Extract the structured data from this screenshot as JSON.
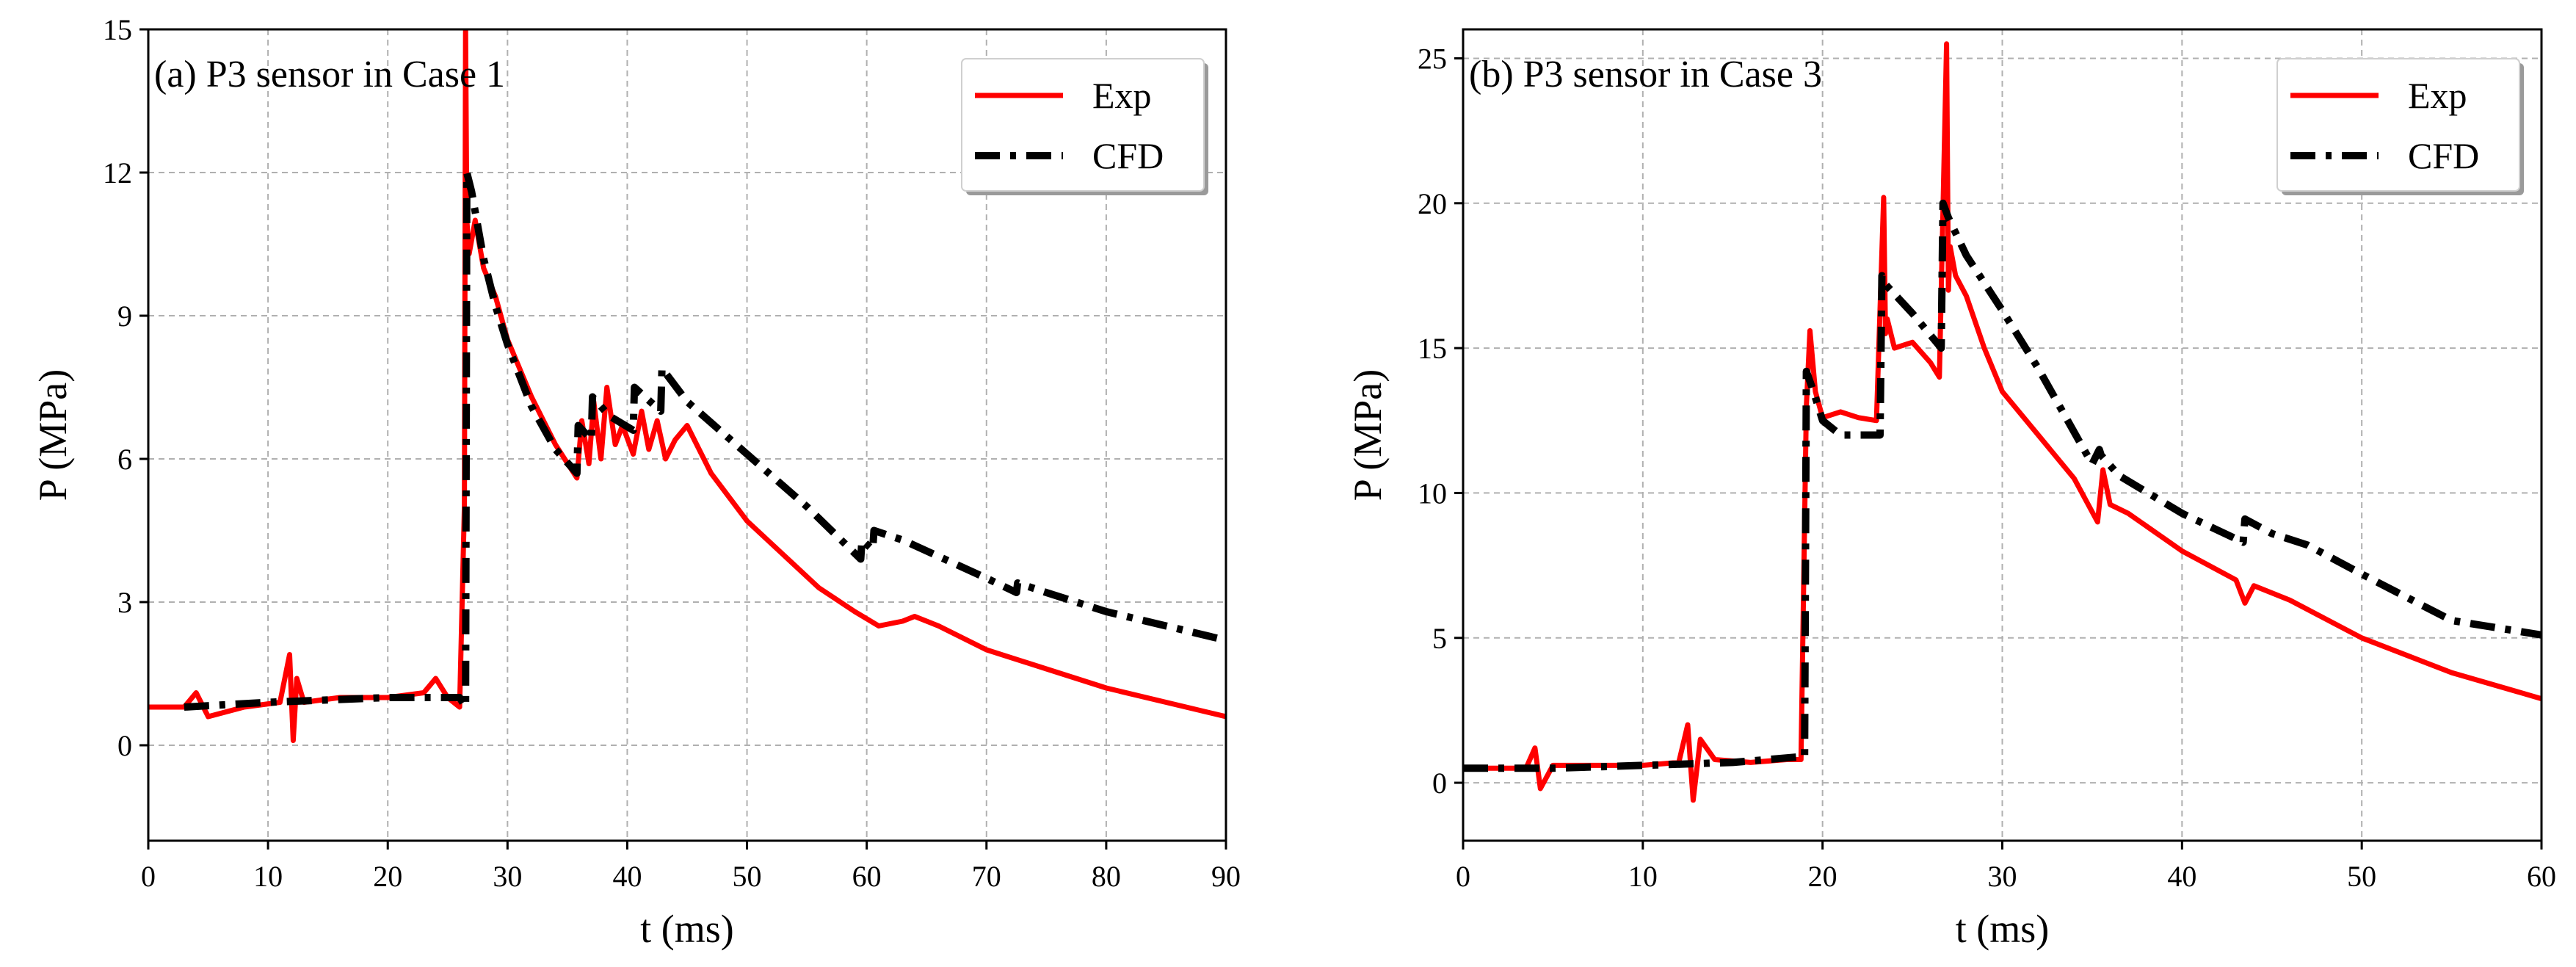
{
  "chart_data": [
    {
      "type": "line",
      "title": "(a) P3 sensor in Case 1",
      "xlabel": "t (ms)",
      "ylabel": "P (MPa)",
      "xlim": [
        0,
        90
      ],
      "ylim": [
        -2,
        15
      ],
      "xticks": [
        0,
        10,
        20,
        30,
        40,
        50,
        60,
        70,
        80,
        90
      ],
      "yticks": [
        0,
        3,
        6,
        9,
        12,
        15
      ],
      "grid": true,
      "legend_position": "top-right",
      "series": [
        {
          "name": "Exp",
          "color": "#ff0000",
          "style": "solid",
          "x": [
            0,
            3,
            4,
            5,
            8,
            11,
            11.8,
            12.1,
            12.4,
            13,
            16,
            20,
            23,
            24,
            25,
            26,
            26.4,
            26.5,
            26.6,
            26.8,
            27.3,
            28,
            29,
            30,
            32,
            34,
            35.8,
            36.2,
            36.8,
            37.2,
            37.8,
            38.3,
            39,
            39.6,
            40.5,
            41.2,
            41.8,
            42.5,
            43.2,
            44,
            45,
            47,
            50,
            53,
            56,
            59,
            61,
            63,
            64,
            66,
            70,
            75,
            80,
            85,
            90
          ],
          "y": [
            0.8,
            0.8,
            1.1,
            0.6,
            0.8,
            0.9,
            1.9,
            0.1,
            1.4,
            0.9,
            1.0,
            1.0,
            1.1,
            1.4,
            1.0,
            0.8,
            5,
            15,
            11,
            10.3,
            11.0,
            10.0,
            9.4,
            8.5,
            7.3,
            6.3,
            5.6,
            6.8,
            5.9,
            7.2,
            6.0,
            7.5,
            6.3,
            6.7,
            6.1,
            7.0,
            6.2,
            6.8,
            6.0,
            6.4,
            6.7,
            5.7,
            4.7,
            4.0,
            3.3,
            2.8,
            2.5,
            2.6,
            2.7,
            2.5,
            2.0,
            1.6,
            1.2,
            0.9,
            0.6
          ]
        },
        {
          "name": "CFD",
          "color": "#000000",
          "style": "dashdot",
          "x": [
            3,
            10,
            20,
            26,
            26.5,
            26.6,
            27,
            28,
            29,
            30,
            32,
            34,
            35.8,
            35.9,
            37,
            37.1,
            38.5,
            40.5,
            40.6,
            42.8,
            42.9,
            45,
            50,
            55,
            59.5,
            59.6,
            60.5,
            60.6,
            63,
            70,
            72.5,
            72.6,
            75,
            80,
            85,
            90
          ],
          "y": [
            0.8,
            0.9,
            1.0,
            1.0,
            0.8,
            12.0,
            11.6,
            10.2,
            9.2,
            8.4,
            7.1,
            6.2,
            5.7,
            6.7,
            6.4,
            7.3,
            6.9,
            6.6,
            7.5,
            7.0,
            7.9,
            7.2,
            6.1,
            5.0,
            3.9,
            4.3,
            4.1,
            4.5,
            4.3,
            3.5,
            3.2,
            3.4,
            3.2,
            2.8,
            2.5,
            2.2
          ]
        }
      ]
    },
    {
      "type": "line",
      "title": "(b) P3 sensor in Case 3",
      "xlabel": "t (ms)",
      "ylabel": "P (MPa)",
      "xlim": [
        0,
        60
      ],
      "ylim": [
        -2,
        26
      ],
      "xticks": [
        0,
        10,
        20,
        30,
        40,
        50,
        60
      ],
      "yticks": [
        0,
        5,
        10,
        15,
        20,
        25
      ],
      "grid": true,
      "legend_position": "top-right",
      "series": [
        {
          "name": "Exp",
          "color": "#ff0000",
          "style": "solid",
          "x": [
            0,
            3.5,
            4,
            4.3,
            5,
            8,
            10,
            12,
            12.5,
            12.8,
            13.2,
            14,
            16,
            18,
            18.8,
            19.1,
            19.3,
            19.6,
            20,
            21,
            22,
            23,
            23.4,
            23.5,
            23.6,
            24,
            25,
            26,
            26.5,
            26.9,
            27,
            27.1,
            27.4,
            28,
            29,
            30,
            32,
            34,
            35.3,
            35.6,
            36,
            37,
            40,
            43,
            43.5,
            44,
            46,
            50,
            55,
            60
          ],
          "y": [
            0.5,
            0.5,
            1.2,
            -0.2,
            0.6,
            0.6,
            0.6,
            0.7,
            2.0,
            -0.6,
            1.5,
            0.8,
            0.7,
            0.8,
            0.8,
            13,
            15.6,
            13.5,
            12.6,
            12.8,
            12.6,
            12.5,
            20.2,
            15.5,
            16.0,
            15.0,
            15.2,
            14.5,
            14.0,
            25.5,
            17.0,
            18.5,
            17.5,
            16.8,
            15.0,
            13.5,
            12.0,
            10.5,
            9.0,
            10.8,
            9.6,
            9.3,
            8.0,
            7.0,
            6.2,
            6.8,
            6.3,
            5.0,
            3.8,
            2.9
          ]
        },
        {
          "name": "CFD",
          "color": "#000000",
          "style": "dashdot",
          "x": [
            0,
            5,
            10,
            15,
            18.8,
            19,
            19.1,
            19.5,
            20,
            21,
            23.2,
            23.3,
            23.5,
            25,
            26.6,
            26.7,
            27,
            28,
            30,
            32,
            35,
            35.4,
            35.5,
            36.5,
            40,
            43.4,
            43.5,
            45,
            47,
            50,
            55,
            60
          ],
          "y": [
            0.5,
            0.5,
            0.6,
            0.7,
            0.9,
            0.9,
            14.2,
            13.5,
            12.5,
            12.0,
            12.0,
            17.5,
            17.2,
            16.2,
            15.0,
            20.0,
            19.5,
            18.2,
            16.3,
            14.3,
            11.0,
            11.5,
            11.3,
            10.6,
            9.3,
            8.3,
            9.1,
            8.6,
            8.2,
            7.2,
            5.6,
            5.1
          ]
        }
      ]
    }
  ]
}
